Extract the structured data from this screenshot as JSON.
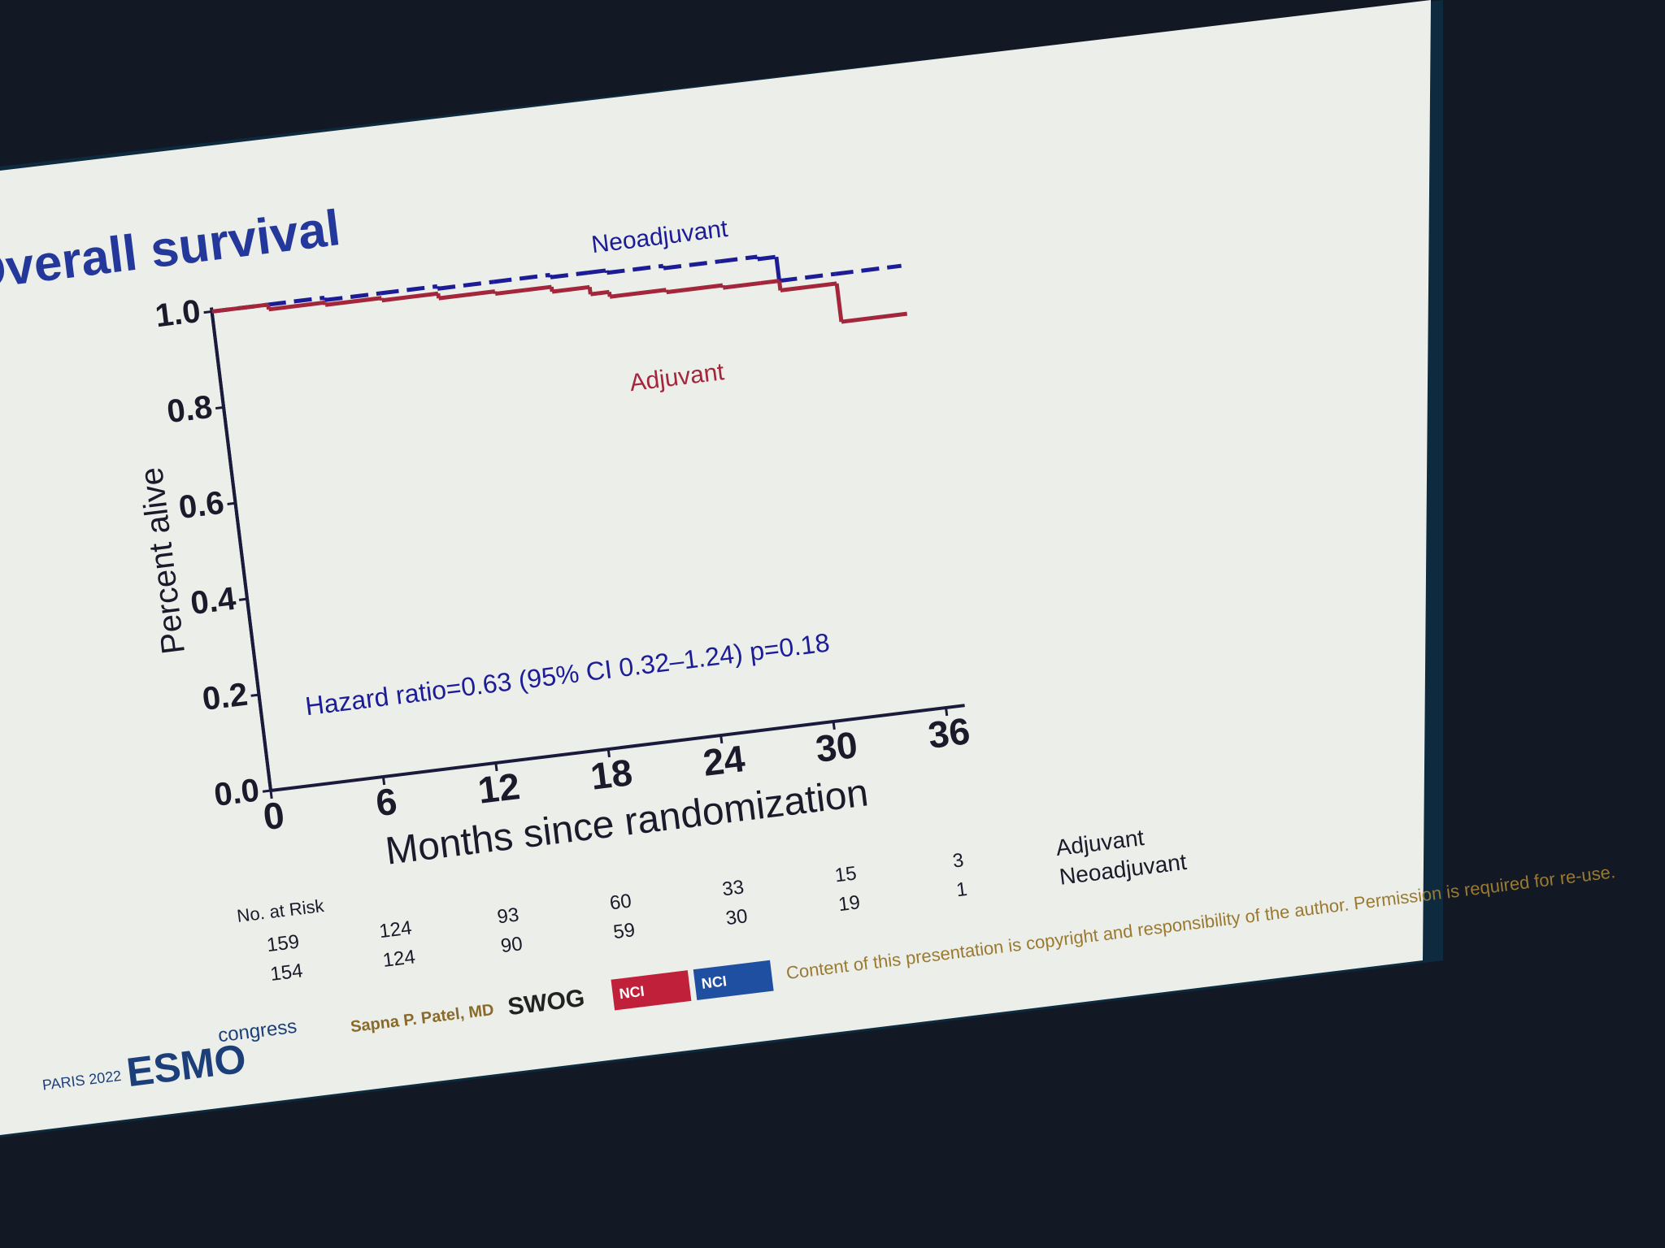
{
  "chart_data": {
    "type": "step",
    "title": "Overall survival",
    "x_label": "Months since randomization",
    "y_label": "Percent alive",
    "annotation": "Hazard ratio=0.63 (95% CI 0.32–1.24) p=0.18",
    "x": [
      0,
      3,
      6,
      9,
      12,
      15,
      18,
      20,
      21,
      24,
      27,
      29,
      30,
      33,
      36.5
    ],
    "series": [
      {
        "name": "Neoadjuvant",
        "color": "#1c1c96",
        "style": "dashed",
        "values": [
          1.0,
          1.0,
          0.995,
          0.995,
          0.99,
          0.99,
          0.985,
          0.985,
          0.98,
          0.975,
          0.975,
          0.97,
          0.92,
          0.92,
          0.92
        ]
      },
      {
        "name": "Adjuvant",
        "color": "#a3263b",
        "style": "solid",
        "values": [
          1.0,
          0.99,
          0.985,
          0.98,
          0.97,
          0.965,
          0.955,
          0.94,
          0.93,
          0.925,
          0.92,
          0.92,
          0.9,
          0.82,
          0.82
        ]
      }
    ],
    "xlim": [
      0,
      37
    ],
    "xticks": [
      0,
      6,
      12,
      18,
      24,
      30,
      36
    ],
    "ylim": [
      0,
      1
    ],
    "yticks": [
      {
        "value": 0,
        "label": "0.0"
      },
      0.2,
      0.4,
      0.6,
      0.8,
      {
        "value": 1,
        "label": "1.0"
      }
    ],
    "risk_table": {
      "title": "No. at Risk",
      "rows": [
        {
          "name": "Adjuvant",
          "values": [
            159,
            124,
            93,
            60,
            33,
            15,
            3
          ]
        },
        {
          "name": "Neoadjuvant",
          "values": [
            154,
            124,
            90,
            59,
            30,
            19,
            1
          ]
        }
      ]
    }
  },
  "footer": {
    "event": "PARIS 2022",
    "logo": "ESMO",
    "logo_suffix": "congress",
    "presenter": "Sapna P. Patel, MD",
    "partner": "SWOG",
    "nci_1": "NCI",
    "nci_2": "NCI",
    "copyright": "Content of this presentation is copyright and responsibility of the author. Permission is required for re-use."
  }
}
